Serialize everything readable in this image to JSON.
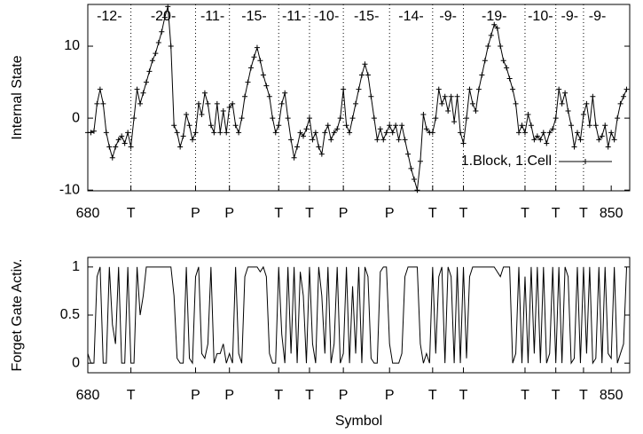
{
  "chart_data": [
    {
      "type": "line",
      "y_label": "Internal State",
      "x": [
        680,
        681,
        682,
        683,
        684,
        685,
        686,
        687,
        688,
        689,
        690,
        691,
        692,
        693,
        694,
        695,
        696,
        697,
        698,
        699,
        700,
        701,
        702,
        703,
        704,
        705,
        706,
        707,
        708,
        709,
        710,
        711,
        712,
        713,
        714,
        715,
        716,
        717,
        718,
        719,
        720,
        721,
        722,
        723,
        724,
        725,
        726,
        727,
        728,
        729,
        730,
        731,
        732,
        733,
        734,
        735,
        736,
        737,
        738,
        739,
        740,
        741,
        742,
        743,
        744,
        745,
        746,
        747,
        748,
        749,
        750,
        751,
        752,
        753,
        754,
        755,
        756,
        757,
        758,
        759,
        760,
        761,
        762,
        763,
        764,
        765,
        766,
        767,
        768,
        769,
        770,
        771,
        772,
        773,
        774,
        775,
        776,
        777,
        778,
        779,
        780,
        781,
        782,
        783,
        784,
        785,
        786,
        787,
        788,
        789,
        790,
        791,
        792,
        793,
        794,
        795,
        796,
        797,
        798,
        799,
        800,
        801,
        802,
        803,
        804,
        805,
        806,
        807,
        808,
        809,
        810,
        811,
        812,
        813,
        814,
        815,
        816,
        817,
        818,
        819,
        820,
        821,
        822,
        823,
        824,
        825,
        826,
        827,
        828,
        829,
        830,
        831,
        832,
        833,
        834,
        835,
        836,
        837,
        838,
        839,
        840,
        841,
        842,
        843,
        844,
        845,
        846,
        847,
        848,
        849,
        850,
        851,
        852,
        853,
        854,
        855
      ],
      "series": [
        {
          "name": "1.Block, 1.Cell",
          "color": "#000000",
          "values": [
            -2,
            -2,
            -1.8,
            2,
            4,
            2,
            -2,
            -4,
            -5.5,
            -4,
            -3,
            -2.5,
            -3.5,
            -2,
            -4,
            0,
            4,
            2,
            3.5,
            5,
            6.5,
            8,
            9,
            10.5,
            12,
            14,
            15.5,
            10,
            -1,
            -2,
            -4,
            -2.5,
            0.5,
            -1,
            -3,
            -2,
            2,
            0.5,
            3.5,
            2,
            -1,
            -2,
            2,
            -2,
            1,
            -2,
            1.5,
            2,
            -1,
            -2,
            0,
            3,
            5,
            7,
            8.5,
            9.8,
            8,
            6,
            4.5,
            3,
            0,
            -2,
            -1,
            2,
            3.5,
            0,
            -3,
            -5.5,
            -4,
            -2,
            -2.5,
            -1.5,
            0,
            -3,
            -2,
            -4,
            -5,
            -2,
            -1,
            -3,
            -2,
            -1.5,
            0,
            4,
            -1,
            -2,
            0,
            2,
            4,
            6,
            7.5,
            6,
            3,
            0,
            -3,
            -1.5,
            -3,
            -2,
            -1,
            -2,
            -1,
            -3,
            -1,
            -3,
            -5,
            -7,
            -8.5,
            -10,
            -6,
            0.5,
            -1.5,
            -2,
            -2,
            0,
            4,
            2,
            3,
            1,
            3,
            -0.5,
            3,
            -2,
            -3.5,
            0,
            4,
            2,
            1,
            4,
            6,
            8,
            10,
            11.5,
            13,
            12.5,
            10,
            8,
            7,
            5.5,
            4,
            2,
            -2,
            -1,
            -2,
            0.5,
            -1,
            -3,
            -2.5,
            -3,
            -2,
            -3.5,
            -2,
            -1.5,
            0,
            4,
            2,
            3.5,
            1,
            -1,
            -4,
            -2,
            -3,
            0.5,
            2,
            -1,
            3,
            -1,
            -3,
            -2.5,
            -1,
            -4,
            -2,
            -3,
            0,
            2,
            3,
            4
          ]
        }
      ],
      "xlim": [
        680,
        856
      ],
      "ylim": [
        -10.1,
        15.8
      ],
      "xticks": [
        680,
        {
          "value": 694,
          "label": "T"
        },
        {
          "value": 715,
          "label": "P"
        },
        {
          "value": 726,
          "label": "P"
        },
        {
          "value": 742,
          "label": "T"
        },
        {
          "value": 752,
          "label": "T"
        },
        {
          "value": 763,
          "label": "P"
        },
        {
          "value": 778,
          "label": "P"
        },
        {
          "value": 792,
          "label": "T"
        },
        {
          "value": 802,
          "label": "T"
        },
        {
          "value": 822,
          "label": "T"
        },
        {
          "value": 832,
          "label": "T"
        },
        {
          "value": 841,
          "label": "T"
        },
        850
      ],
      "yticks": [
        -10,
        0,
        10
      ],
      "segment_labels": [
        "-12-",
        "-20-",
        "-11-",
        "-15-",
        "-11-",
        "-10-",
        "-15-",
        "-14-",
        "-9-",
        "-19-",
        "-10-",
        "-9-",
        "-9-"
      ],
      "grid": true,
      "markers": true,
      "legend": "lower right"
    },
    {
      "type": "line",
      "y_label": "Forget Gate Activ.",
      "x_label": "Symbol",
      "x": [
        680,
        681,
        682,
        683,
        684,
        685,
        686,
        687,
        688,
        689,
        690,
        691,
        692,
        693,
        694,
        695,
        696,
        697,
        698,
        699,
        700,
        701,
        702,
        703,
        704,
        705,
        706,
        707,
        708,
        709,
        710,
        711,
        712,
        713,
        714,
        715,
        716,
        717,
        718,
        719,
        720,
        721,
        722,
        723,
        724,
        725,
        726,
        727,
        728,
        729,
        730,
        731,
        732,
        733,
        734,
        735,
        736,
        737,
        738,
        739,
        740,
        741,
        742,
        743,
        744,
        745,
        746,
        747,
        748,
        749,
        750,
        751,
        752,
        753,
        754,
        755,
        756,
        757,
        758,
        759,
        760,
        761,
        762,
        763,
        764,
        765,
        766,
        767,
        768,
        769,
        770,
        771,
        772,
        773,
        774,
        775,
        776,
        777,
        778,
        779,
        780,
        781,
        782,
        783,
        784,
        785,
        786,
        787,
        788,
        789,
        790,
        791,
        792,
        793,
        794,
        795,
        796,
        797,
        798,
        799,
        800,
        801,
        802,
        803,
        804,
        805,
        806,
        807,
        808,
        809,
        810,
        811,
        812,
        813,
        814,
        815,
        816,
        817,
        818,
        819,
        820,
        821,
        822,
        823,
        824,
        825,
        826,
        827,
        828,
        829,
        830,
        831,
        832,
        833,
        834,
        835,
        836,
        837,
        838,
        839,
        840,
        841,
        842,
        843,
        844,
        845,
        846,
        847,
        848,
        849,
        850,
        851,
        852,
        853,
        854,
        855
      ],
      "series": [
        {
          "color": "#000000",
          "values": [
            0.1,
            0,
            0,
            0.9,
            1,
            0,
            0,
            1,
            0.4,
            0.2,
            1,
            0,
            0,
            1,
            0,
            0,
            1,
            0.5,
            0.7,
            1,
            1,
            1,
            1,
            1,
            1,
            1,
            1,
            1,
            0.7,
            0.05,
            0,
            0,
            1,
            0.05,
            0,
            0.9,
            1,
            0.1,
            0.05,
            0.2,
            1,
            0,
            0.1,
            0.1,
            0.2,
            0,
            0.1,
            0,
            1,
            0.1,
            0,
            0.9,
            1,
            1,
            1,
            1,
            0.95,
            1,
            0.9,
            0.1,
            0,
            0,
            1,
            0.3,
            0,
            1,
            0.1,
            1,
            0,
            0.95,
            0.7,
            0,
            1,
            0.2,
            0,
            1,
            0.7,
            0.1,
            1,
            0,
            0.2,
            1,
            0,
            0.1,
            1,
            0,
            0.8,
            0.1,
            1,
            0,
            1,
            0.9,
            0.05,
            0,
            0,
            0.95,
            1,
            1,
            0.2,
            0,
            0,
            0,
            0.1,
            0.9,
            1,
            1,
            1,
            1,
            0.2,
            0,
            0.1,
            0,
            1,
            0.1,
            0.9,
            1,
            0,
            1,
            0.9,
            0,
            1,
            0,
            1,
            0.05,
            0.9,
            1,
            1,
            1,
            1,
            1,
            1,
            1,
            1,
            0.95,
            0.9,
            1,
            1,
            1,
            0,
            0.1,
            1,
            0,
            0.9,
            0,
            1,
            0.1,
            1,
            0,
            1,
            0,
            0.1,
            1,
            0,
            1,
            0,
            1,
            0.9,
            0,
            0.05,
            1,
            0,
            1,
            0.1,
            1,
            0,
            0.05,
            1,
            0,
            1,
            0.1,
            0.05,
            1,
            0,
            0.1,
            0.2,
            1
          ]
        }
      ],
      "xlim": [
        680,
        856
      ],
      "ylim": [
        -0.1,
        1.1
      ],
      "xticks": [
        680,
        {
          "value": 694,
          "label": "T"
        },
        {
          "value": 715,
          "label": "P"
        },
        {
          "value": 726,
          "label": "P"
        },
        {
          "value": 742,
          "label": "T"
        },
        {
          "value": 752,
          "label": "T"
        },
        {
          "value": 763,
          "label": "P"
        },
        {
          "value": 778,
          "label": "P"
        },
        {
          "value": 792,
          "label": "T"
        },
        {
          "value": 802,
          "label": "T"
        },
        {
          "value": 822,
          "label": "T"
        },
        {
          "value": 832,
          "label": "T"
        },
        {
          "value": 841,
          "label": "T"
        },
        850
      ],
      "yticks": [
        0,
        0.5,
        1
      ],
      "grid": false,
      "markers": false
    }
  ]
}
